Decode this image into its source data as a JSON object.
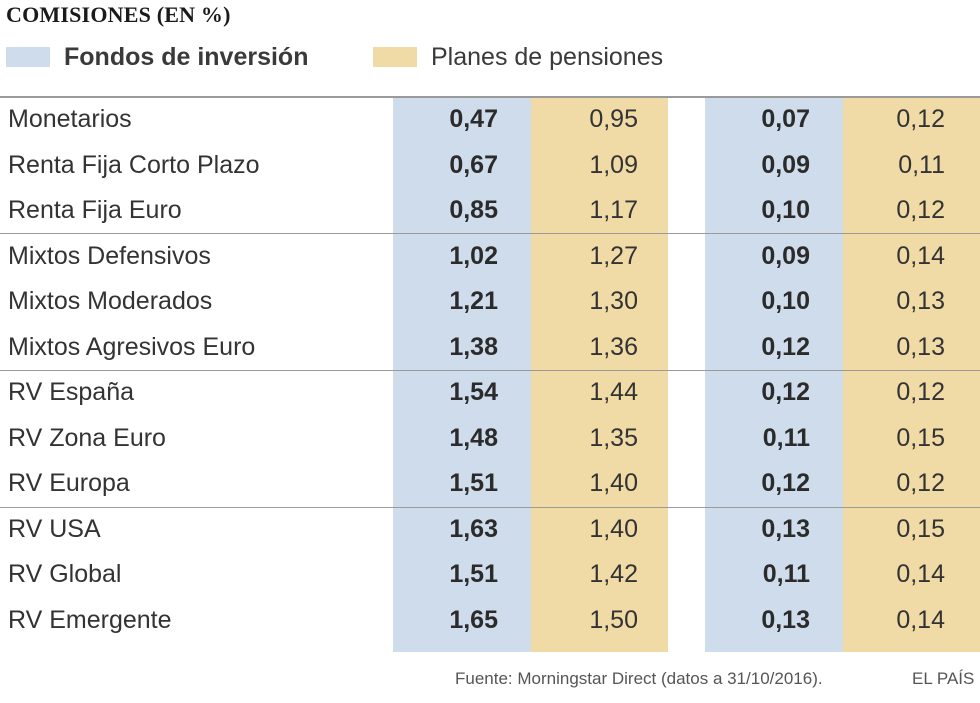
{
  "chart_data": {
    "type": "table",
    "title": "COMISIONES (EN %)",
    "legend": [
      {
        "label": "Fondos de inversión",
        "color": "#cfdcec"
      },
      {
        "label": "Planes de pensiones",
        "color": "#f0dba7"
      }
    ],
    "columns": [
      {
        "series": "Fondos de inversión",
        "color": "#cfdcec",
        "bold": true
      },
      {
        "series": "Planes de pensiones",
        "color": "#f0dba7",
        "bold": false
      },
      {
        "series": "Fondos de inversión",
        "color": "#cfdcec",
        "bold": true
      },
      {
        "series": "Planes de pensiones",
        "color": "#f0dba7",
        "bold": false
      }
    ],
    "groups": [
      {
        "rows": [
          {
            "label": "Monetarios",
            "values": [
              "0,47",
              "0,95",
              "0,07",
              "0,12"
            ]
          },
          {
            "label": "Renta Fija Corto Plazo",
            "values": [
              "0,67",
              "1,09",
              "0,09",
              "0,11"
            ]
          },
          {
            "label": "Renta Fija Euro",
            "values": [
              "0,85",
              "1,17",
              "0,10",
              "0,12"
            ]
          }
        ]
      },
      {
        "rows": [
          {
            "label": "Mixtos Defensivos",
            "values": [
              "1,02",
              "1,27",
              "0,09",
              "0,14"
            ]
          },
          {
            "label": "Mixtos Moderados",
            "values": [
              "1,21",
              "1,30",
              "0,10",
              "0,13"
            ]
          },
          {
            "label": "Mixtos Agresivos Euro",
            "values": [
              "1,38",
              "1,36",
              "0,12",
              "0,13"
            ]
          }
        ]
      },
      {
        "rows": [
          {
            "label": "RV España",
            "values": [
              "1,54",
              "1,44",
              "0,12",
              "0,12"
            ]
          },
          {
            "label": "RV Zona Euro",
            "values": [
              "1,48",
              "1,35",
              "0,11",
              "0,15"
            ]
          },
          {
            "label": "RV Europa",
            "values": [
              "1,51",
              "1,40",
              "0,12",
              "0,12"
            ]
          }
        ]
      },
      {
        "rows": [
          {
            "label": "RV USA",
            "values": [
              "1,63",
              "1,40",
              "0,13",
              "0,15"
            ]
          },
          {
            "label": "RV Global",
            "values": [
              "1,51",
              "1,42",
              "0,11",
              "0,14"
            ]
          },
          {
            "label": "RV Emergente",
            "values": [
              "1,65",
              "1,50",
              "0,13",
              "0,14"
            ]
          }
        ]
      }
    ],
    "source": "Fuente: Morningstar Direct (datos a 31/10/2016).",
    "brand": "EL PAÍS"
  }
}
